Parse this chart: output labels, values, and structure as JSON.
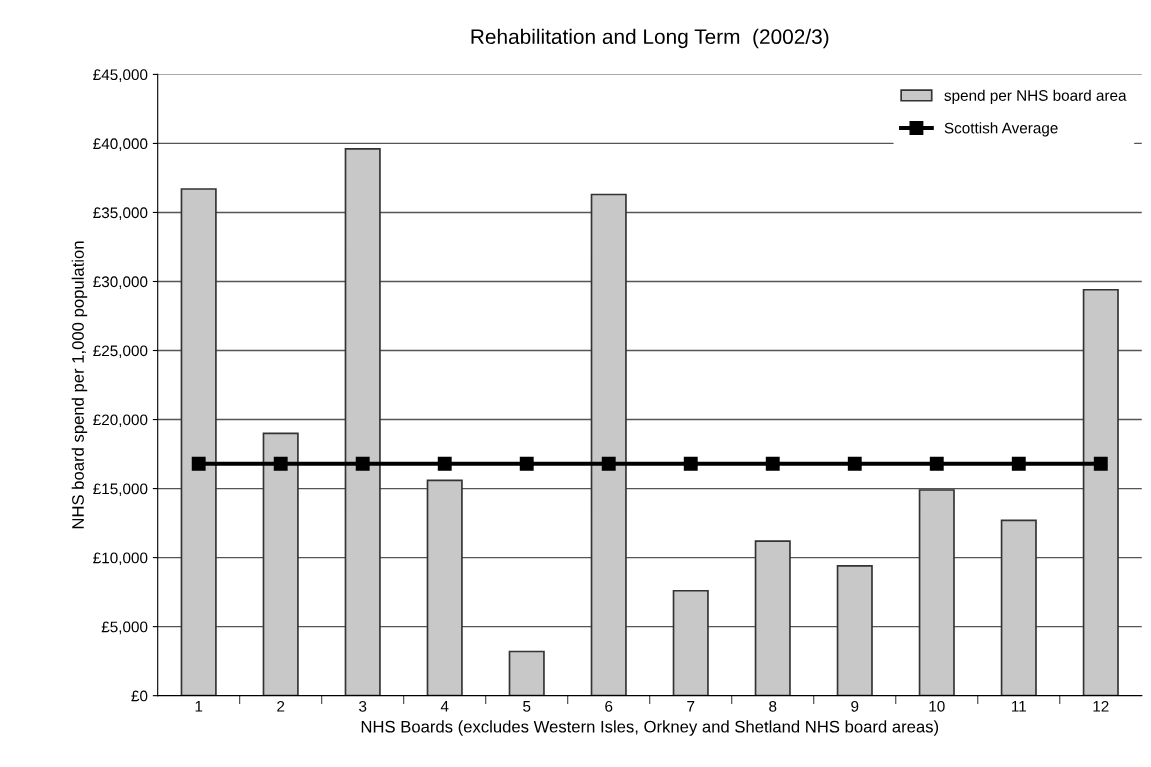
{
  "chart_data": {
    "type": "bar",
    "title": "Rehabilitation and Long Term  (2002/3)",
    "xlabel": "NHS Boards (excludes Western Isles, Orkney and Shetland NHS board areas)",
    "ylabel": "NHS board spend per 1,000 population",
    "categories": [
      "1",
      "2",
      "3",
      "4",
      "5",
      "6",
      "7",
      "8",
      "9",
      "10",
      "11",
      "12"
    ],
    "series": [
      {
        "name": "spend per NHS board area",
        "color": "#c8c8c8",
        "values": [
          36700,
          19000,
          39600,
          15600,
          3200,
          36300,
          7600,
          11200,
          9400,
          14900,
          12700,
          29400
        ]
      },
      {
        "name": "Scottish Average",
        "type": "line",
        "color": "#000000",
        "marker": "square",
        "values": [
          16800,
          16800,
          16800,
          16800,
          16800,
          16800,
          16800,
          16800,
          16800,
          16800,
          16800,
          16800
        ]
      }
    ],
    "ylim": [
      0,
      45000
    ],
    "yticks": [
      {
        "value": 0,
        "label": "£0"
      },
      {
        "value": 5000,
        "label": "£5,000"
      },
      {
        "value": 10000,
        "label": "£10,000"
      },
      {
        "value": 15000,
        "label": "£15,000"
      },
      {
        "value": 20000,
        "label": "£20,000"
      },
      {
        "value": 25000,
        "label": "£25,000"
      },
      {
        "value": 30000,
        "label": "£30,000"
      },
      {
        "value": 35000,
        "label": "£35,000"
      },
      {
        "value": 40000,
        "label": "£40,000"
      },
      {
        "value": 45000,
        "label": "£45,000"
      }
    ],
    "grid": "y",
    "legend": "top right"
  }
}
